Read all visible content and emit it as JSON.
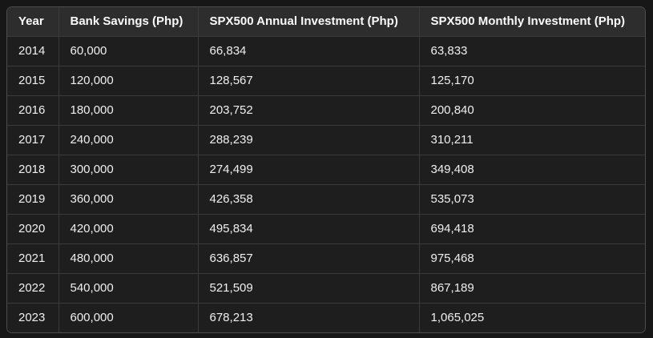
{
  "table": {
    "columns": [
      "Year",
      "Bank Savings (Php)",
      "SPX500 Annual Investment (Php)",
      "SPX500 Monthly Investment (Php)"
    ],
    "rows": [
      [
        "2014",
        "60,000",
        "66,834",
        "63,833"
      ],
      [
        "2015",
        "120,000",
        "128,567",
        "125,170"
      ],
      [
        "2016",
        "180,000",
        "203,752",
        "200,840"
      ],
      [
        "2017",
        "240,000",
        "288,239",
        "310,211"
      ],
      [
        "2018",
        "300,000",
        "274,499",
        "349,408"
      ],
      [
        "2019",
        "360,000",
        "426,358",
        "535,073"
      ],
      [
        "2020",
        "420,000",
        "495,834",
        "694,418"
      ],
      [
        "2021",
        "480,000",
        "636,857",
        "975,468"
      ],
      [
        "2022",
        "540,000",
        "521,509",
        "867,189"
      ],
      [
        "2023",
        "600,000",
        "678,213",
        "1,065,025"
      ]
    ],
    "cell_names": [
      "cell-year",
      "cell-bank-savings",
      "cell-annual-investment",
      "cell-monthly-investment"
    ]
  },
  "colors": {
    "page_bg": "#171717",
    "cell_bg": "#1e1e1e",
    "header_bg": "#2d2d2d",
    "inner_border": "#3a3a3a",
    "outer_border": "#4d4d4d",
    "text": "#efefef"
  },
  "chart_data": {
    "type": "table",
    "columns": [
      "Year",
      "Bank Savings (Php)",
      "SPX500 Annual Investment (Php)",
      "SPX500 Monthly Investment (Php)"
    ],
    "rows": [
      [
        2014,
        60000,
        66834,
        63833
      ],
      [
        2015,
        120000,
        128567,
        125170
      ],
      [
        2016,
        180000,
        203752,
        200840
      ],
      [
        2017,
        240000,
        288239,
        310211
      ],
      [
        2018,
        300000,
        274499,
        349408
      ],
      [
        2019,
        360000,
        426358,
        535073
      ],
      [
        2020,
        420000,
        495834,
        694418
      ],
      [
        2021,
        480000,
        636857,
        975468
      ],
      [
        2022,
        540000,
        521509,
        867189
      ],
      [
        2023,
        600000,
        678213,
        1065025
      ]
    ]
  }
}
